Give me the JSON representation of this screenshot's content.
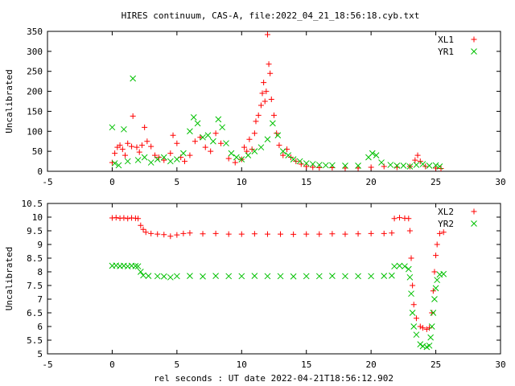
{
  "title": "HIRES continuum, CAS-A, file:2022_04_21_18:56:18.cyb.txt",
  "xlabel": "rel seconds : UT date 2022-04-21T18:56:12.902",
  "colors": {
    "series1": "#ff0000",
    "series2": "#00c000",
    "axis": "#000000"
  },
  "chart_data": [
    {
      "type": "scatter",
      "ylabel": "Uncalibrated",
      "xlim": [
        -5,
        30
      ],
      "ylim": [
        0,
        350
      ],
      "xticks": [
        "-5",
        "0",
        "5",
        "10",
        "15",
        "20",
        "25",
        "30"
      ],
      "yticks": [
        "0",
        "50",
        "100",
        "150",
        "200",
        "250",
        "300",
        "350"
      ],
      "grid": false,
      "legend_position": "top-right",
      "series": [
        {
          "name": "XL1",
          "marker": "plus",
          "points": [
            [
              0.0,
              22
            ],
            [
              0.2,
              45
            ],
            [
              0.4,
              60
            ],
            [
              0.6,
              65
            ],
            [
              0.8,
              55
            ],
            [
              1.0,
              40
            ],
            [
              1.2,
              70
            ],
            [
              1.5,
              62
            ],
            [
              1.6,
              138
            ],
            [
              1.9,
              60
            ],
            [
              2.1,
              48
            ],
            [
              2.3,
              65
            ],
            [
              2.5,
              110
            ],
            [
              2.7,
              75
            ],
            [
              3.0,
              62
            ],
            [
              3.3,
              40
            ],
            [
              3.6,
              35
            ],
            [
              4.0,
              28
            ],
            [
              4.5,
              45
            ],
            [
              4.7,
              90
            ],
            [
              5.0,
              70
            ],
            [
              5.3,
              35
            ],
            [
              5.6,
              25
            ],
            [
              6.0,
              40
            ],
            [
              6.4,
              75
            ],
            [
              6.8,
              85
            ],
            [
              7.2,
              60
            ],
            [
              7.6,
              50
            ],
            [
              8.0,
              95
            ],
            [
              8.4,
              70
            ],
            [
              9.0,
              32
            ],
            [
              9.5,
              22
            ],
            [
              10.0,
              30
            ],
            [
              10.2,
              60
            ],
            [
              10.4,
              50
            ],
            [
              10.6,
              80
            ],
            [
              10.8,
              55
            ],
            [
              11.0,
              95
            ],
            [
              11.1,
              125
            ],
            [
              11.3,
              140
            ],
            [
              11.5,
              165
            ],
            [
              11.6,
              195
            ],
            [
              11.7,
              222
            ],
            [
              11.8,
              175
            ],
            [
              11.9,
              200
            ],
            [
              12.0,
              342
            ],
            [
              12.1,
              268
            ],
            [
              12.2,
              245
            ],
            [
              12.3,
              180
            ],
            [
              12.5,
              140
            ],
            [
              12.7,
              95
            ],
            [
              12.9,
              65
            ],
            [
              13.2,
              40
            ],
            [
              13.5,
              55
            ],
            [
              13.8,
              35
            ],
            [
              14.2,
              25
            ],
            [
              14.6,
              18
            ],
            [
              15.0,
              12
            ],
            [
              15.5,
              10
            ],
            [
              16.0,
              9
            ],
            [
              17.0,
              9
            ],
            [
              18.0,
              8
            ],
            [
              19.0,
              8
            ],
            [
              20.0,
              10
            ],
            [
              21.0,
              12
            ],
            [
              22.0,
              10
            ],
            [
              23.0,
              12
            ],
            [
              23.4,
              28
            ],
            [
              23.6,
              40
            ],
            [
              23.8,
              25
            ],
            [
              24.2,
              12
            ],
            [
              25.0,
              8
            ],
            [
              25.4,
              7
            ]
          ]
        },
        {
          "name": "YR1",
          "marker": "cross",
          "points": [
            [
              0.0,
              110
            ],
            [
              0.2,
              20
            ],
            [
              0.5,
              15
            ],
            [
              0.9,
              105
            ],
            [
              1.2,
              25
            ],
            [
              1.6,
              232
            ],
            [
              2.0,
              28
            ],
            [
              2.5,
              35
            ],
            [
              3.0,
              22
            ],
            [
              3.5,
              30
            ],
            [
              4.0,
              35
            ],
            [
              4.5,
              25
            ],
            [
              5.0,
              30
            ],
            [
              5.5,
              45
            ],
            [
              6.0,
              100
            ],
            [
              6.3,
              135
            ],
            [
              6.6,
              120
            ],
            [
              7.0,
              85
            ],
            [
              7.4,
              90
            ],
            [
              7.8,
              75
            ],
            [
              8.2,
              130
            ],
            [
              8.5,
              110
            ],
            [
              8.8,
              70
            ],
            [
              9.2,
              45
            ],
            [
              9.6,
              35
            ],
            [
              10.0,
              30
            ],
            [
              10.5,
              40
            ],
            [
              11.0,
              50
            ],
            [
              11.5,
              60
            ],
            [
              12.0,
              80
            ],
            [
              12.4,
              120
            ],
            [
              12.8,
              90
            ],
            [
              13.2,
              50
            ],
            [
              13.6,
              40
            ],
            [
              14.0,
              30
            ],
            [
              14.5,
              25
            ],
            [
              15.0,
              20
            ],
            [
              15.5,
              18
            ],
            [
              16.0,
              16
            ],
            [
              16.5,
              15
            ],
            [
              17.0,
              15
            ],
            [
              18.0,
              14
            ],
            [
              19.0,
              14
            ],
            [
              19.8,
              35
            ],
            [
              20.1,
              45
            ],
            [
              20.4,
              40
            ],
            [
              20.8,
              22
            ],
            [
              21.5,
              16
            ],
            [
              22.0,
              14
            ],
            [
              22.5,
              14
            ],
            [
              23.0,
              12
            ],
            [
              23.5,
              16
            ],
            [
              24.0,
              18
            ],
            [
              24.5,
              14
            ],
            [
              25.0,
              15
            ],
            [
              25.3,
              12
            ]
          ]
        }
      ]
    },
    {
      "type": "scatter",
      "ylabel": "Uncalibrated",
      "xlim": [
        -5,
        30
      ],
      "ylim": [
        5,
        10.5
      ],
      "xticks": [
        "-5",
        "0",
        "5",
        "10",
        "15",
        "20",
        "25",
        "30"
      ],
      "yticks": [
        "5",
        "5.5",
        "6",
        "6.5",
        "7",
        "7.5",
        "8",
        "8.5",
        "9",
        "9.5",
        "10",
        "10.5"
      ],
      "grid": false,
      "legend_position": "top-right",
      "series": [
        {
          "name": "XL2",
          "marker": "plus",
          "points": [
            [
              0.0,
              9.97
            ],
            [
              0.3,
              9.98
            ],
            [
              0.6,
              9.96
            ],
            [
              0.9,
              9.97
            ],
            [
              1.2,
              9.95
            ],
            [
              1.5,
              9.97
            ],
            [
              1.8,
              9.96
            ],
            [
              2.0,
              9.95
            ],
            [
              2.2,
              9.7
            ],
            [
              2.4,
              9.55
            ],
            [
              2.6,
              9.45
            ],
            [
              3.0,
              9.4
            ],
            [
              3.5,
              9.38
            ],
            [
              4.0,
              9.36
            ],
            [
              4.5,
              9.3
            ],
            [
              5.0,
              9.35
            ],
            [
              5.5,
              9.4
            ],
            [
              6.0,
              9.42
            ],
            [
              7.0,
              9.39
            ],
            [
              8.0,
              9.4
            ],
            [
              9.0,
              9.38
            ],
            [
              10.0,
              9.38
            ],
            [
              11.0,
              9.39
            ],
            [
              12.0,
              9.38
            ],
            [
              13.0,
              9.38
            ],
            [
              14.0,
              9.37
            ],
            [
              15.0,
              9.38
            ],
            [
              16.0,
              9.38
            ],
            [
              17.0,
              9.39
            ],
            [
              18.0,
              9.38
            ],
            [
              19.0,
              9.39
            ],
            [
              20.0,
              9.4
            ],
            [
              21.0,
              9.4
            ],
            [
              21.6,
              9.42
            ],
            [
              21.8,
              9.95
            ],
            [
              22.2,
              9.98
            ],
            [
              22.6,
              9.96
            ],
            [
              22.9,
              9.95
            ],
            [
              23.0,
              9.5
            ],
            [
              23.1,
              8.5
            ],
            [
              23.2,
              7.5
            ],
            [
              23.3,
              6.8
            ],
            [
              23.5,
              6.3
            ],
            [
              23.8,
              6.0
            ],
            [
              24.0,
              5.95
            ],
            [
              24.3,
              5.9
            ],
            [
              24.5,
              5.95
            ],
            [
              24.7,
              6.5
            ],
            [
              24.8,
              7.3
            ],
            [
              24.9,
              8.0
            ],
            [
              25.0,
              8.6
            ],
            [
              25.1,
              9.0
            ],
            [
              25.3,
              9.4
            ],
            [
              25.6,
              9.45
            ]
          ]
        },
        {
          "name": "YR2",
          "marker": "cross",
          "points": [
            [
              0.0,
              8.22
            ],
            [
              0.3,
              8.23
            ],
            [
              0.6,
              8.21
            ],
            [
              0.9,
              8.22
            ],
            [
              1.2,
              8.2
            ],
            [
              1.5,
              8.22
            ],
            [
              1.8,
              8.21
            ],
            [
              2.0,
              8.2
            ],
            [
              2.2,
              8.0
            ],
            [
              2.4,
              7.87
            ],
            [
              2.8,
              7.85
            ],
            [
              3.5,
              7.84
            ],
            [
              4.0,
              7.83
            ],
            [
              4.5,
              7.8
            ],
            [
              5.0,
              7.84
            ],
            [
              6.0,
              7.85
            ],
            [
              7.0,
              7.83
            ],
            [
              8.0,
              7.85
            ],
            [
              9.0,
              7.84
            ],
            [
              10.0,
              7.84
            ],
            [
              11.0,
              7.85
            ],
            [
              12.0,
              7.84
            ],
            [
              13.0,
              7.84
            ],
            [
              14.0,
              7.83
            ],
            [
              15.0,
              7.84
            ],
            [
              16.0,
              7.84
            ],
            [
              17.0,
              7.85
            ],
            [
              18.0,
              7.84
            ],
            [
              19.0,
              7.84
            ],
            [
              20.0,
              7.84
            ],
            [
              21.0,
              7.85
            ],
            [
              21.6,
              7.86
            ],
            [
              21.8,
              8.2
            ],
            [
              22.2,
              8.22
            ],
            [
              22.6,
              8.2
            ],
            [
              22.9,
              8.1
            ],
            [
              23.0,
              7.8
            ],
            [
              23.1,
              7.2
            ],
            [
              23.2,
              6.5
            ],
            [
              23.3,
              6.0
            ],
            [
              23.5,
              5.7
            ],
            [
              23.8,
              5.35
            ],
            [
              24.0,
              5.28
            ],
            [
              24.3,
              5.25
            ],
            [
              24.5,
              5.3
            ],
            [
              24.6,
              5.6
            ],
            [
              24.7,
              6.0
            ],
            [
              24.8,
              6.5
            ],
            [
              24.9,
              7.0
            ],
            [
              25.0,
              7.4
            ],
            [
              25.1,
              7.7
            ],
            [
              25.3,
              7.9
            ],
            [
              25.6,
              7.92
            ]
          ]
        }
      ]
    }
  ]
}
